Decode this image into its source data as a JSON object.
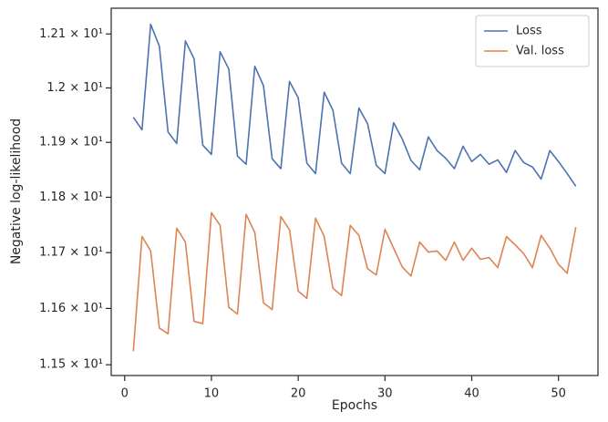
{
  "chart_data": {
    "type": "line",
    "x_label": "Epochs",
    "y_label": "Negative log-likelihood",
    "x": [
      1,
      2,
      3,
      4,
      5,
      6,
      7,
      8,
      9,
      10,
      11,
      12,
      13,
      14,
      15,
      16,
      17,
      18,
      19,
      20,
      21,
      22,
      23,
      24,
      25,
      26,
      27,
      28,
      29,
      30,
      31,
      32,
      33,
      34,
      35,
      36,
      37,
      38,
      39,
      40,
      41,
      42,
      43,
      44,
      45,
      46,
      47,
      48,
      49,
      50,
      51,
      52
    ],
    "series": [
      {
        "name": "Loss",
        "color": "#4c72b0",
        "values": [
          11.946,
          11.923,
          12.118,
          12.077,
          11.919,
          11.898,
          12.087,
          12.054,
          11.895,
          11.878,
          12.067,
          12.035,
          11.875,
          11.86,
          12.04,
          12.004,
          11.87,
          11.852,
          12.012,
          11.982,
          11.862,
          11.843,
          11.992,
          11.959,
          11.862,
          11.843,
          11.963,
          11.934,
          11.858,
          11.843,
          11.936,
          11.906,
          11.867,
          11.85,
          11.91,
          11.885,
          11.871,
          11.852,
          11.893,
          11.865,
          11.878,
          11.86,
          11.868,
          11.845,
          11.885,
          11.863,
          11.855,
          11.833,
          11.885,
          11.865,
          11.843,
          11.82
        ]
      },
      {
        "name": "Val. loss",
        "color": "#dd8452",
        "values": [
          11.524,
          11.729,
          11.703,
          11.565,
          11.555,
          11.744,
          11.719,
          11.577,
          11.573,
          11.772,
          11.749,
          11.602,
          11.59,
          11.769,
          11.736,
          11.61,
          11.598,
          11.765,
          11.741,
          11.631,
          11.618,
          11.762,
          11.729,
          11.636,
          11.623,
          11.749,
          11.731,
          11.671,
          11.66,
          11.742,
          11.708,
          11.674,
          11.658,
          11.719,
          11.701,
          11.703,
          11.686,
          11.719,
          11.686,
          11.708,
          11.688,
          11.691,
          11.673,
          11.729,
          11.714,
          11.698,
          11.673,
          11.731,
          11.708,
          11.679,
          11.663,
          11.746
        ]
      }
    ],
    "xlim": [
      -1.55,
      54.55
    ],
    "xticks": [
      0,
      10,
      20,
      30,
      40,
      50
    ],
    "ylim": [
      11.481,
      12.148
    ],
    "yscale": "log",
    "yticks": [
      {
        "value": 11.5,
        "label": "1.15 × 10¹"
      },
      {
        "value": 11.6,
        "label": "1.16 × 10¹"
      },
      {
        "value": 11.7,
        "label": "1.17 × 10¹"
      },
      {
        "value": 11.8,
        "label": "1.18 × 10¹"
      },
      {
        "value": 11.9,
        "label": "1.19 × 10¹"
      },
      {
        "value": 12.0,
        "label": "1.2 × 10¹"
      },
      {
        "value": 12.1,
        "label": "1.21 × 10¹"
      }
    ],
    "legend": "upper right",
    "grid": false
  }
}
